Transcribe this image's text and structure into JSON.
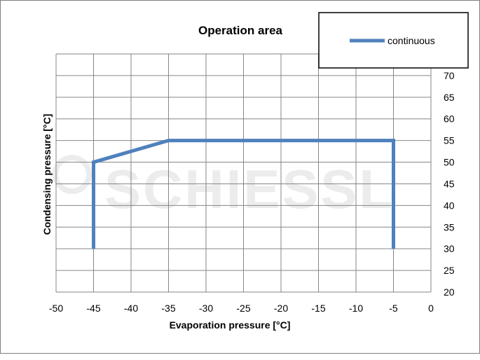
{
  "chart_data": {
    "type": "line",
    "title": "Operation area",
    "xlabel": "Evaporation pressure [°C]",
    "ylabel": "Condensing pressure [°C]",
    "xlim": [
      -50,
      0
    ],
    "ylim": [
      20,
      75
    ],
    "x_ticks": [
      -50,
      -45,
      -40,
      -35,
      -30,
      -25,
      -20,
      -15,
      -10,
      -5,
      0
    ],
    "y_ticks": [
      20,
      25,
      30,
      35,
      40,
      45,
      50,
      55,
      60,
      65,
      70
    ],
    "y_axis_side": "right",
    "grid": true,
    "legend_position": "top-right",
    "series": [
      {
        "name": "continuous",
        "color": "#4f81bd",
        "points": [
          [
            -45,
            30
          ],
          [
            -45,
            50
          ],
          [
            -35,
            55
          ],
          [
            -5,
            55
          ],
          [
            -5,
            30
          ]
        ]
      }
    ],
    "watermark": "SCHIESSL"
  }
}
